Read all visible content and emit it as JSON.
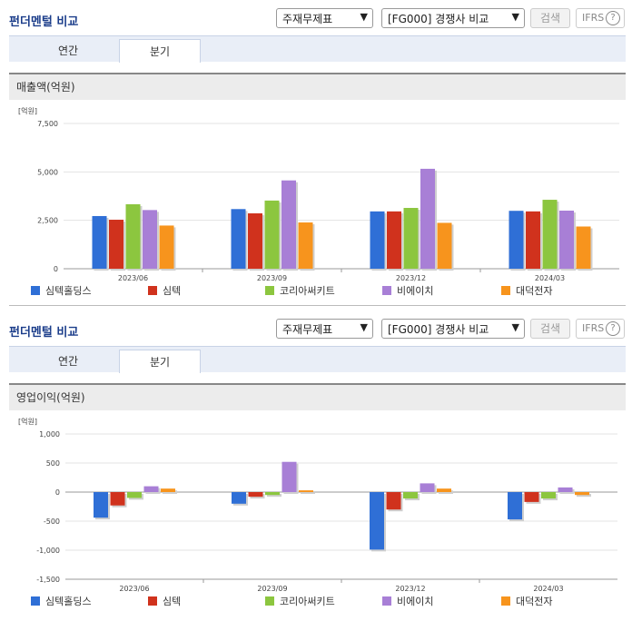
{
  "sections": [
    {
      "title": "펀더멘털 비교",
      "select_type": "주재무제표",
      "select_compare": "[FG000] 경쟁사 비교",
      "search_label": "검색",
      "ifrs_label": "IFRS",
      "help_glyph": "?",
      "tabs": [
        "연간",
        "분기"
      ],
      "active_tab": 1,
      "metric_label": "매출액(억원)"
    },
    {
      "title": "펀더멘털 비교",
      "select_type": "주재무제표",
      "select_compare": "[FG000] 경쟁사 비교",
      "search_label": "검색",
      "ifrs_label": "IFRS",
      "help_glyph": "?",
      "tabs": [
        "연간",
        "분기"
      ],
      "active_tab": 1,
      "metric_label": "영업이익(억원)"
    }
  ],
  "chart_data": [
    {
      "type": "bar",
      "unit_label": "[억원]",
      "categories": [
        "2023/06",
        "2023/09",
        "2023/12",
        "2024/03"
      ],
      "yticks": [
        "7,500",
        "5,000",
        "2,500",
        "0"
      ],
      "ylim": [
        0,
        7500
      ],
      "series": [
        {
          "name": "심텍홀딩스",
          "color": "#2f6fd6",
          "values": [
            2720,
            3080,
            2960,
            2990
          ]
        },
        {
          "name": "심텍",
          "color": "#d0321d",
          "values": [
            2530,
            2860,
            2960,
            2960
          ]
        },
        {
          "name": "코리아써키트",
          "color": "#8cc63f",
          "values": [
            3330,
            3520,
            3140,
            3560
          ]
        },
        {
          "name": "비에이치",
          "color": "#a87fd6",
          "values": [
            3030,
            4560,
            5160,
            3000
          ]
        },
        {
          "name": "대덕전자",
          "color": "#f7941d",
          "values": [
            2230,
            2390,
            2370,
            2180
          ]
        }
      ]
    },
    {
      "type": "bar",
      "unit_label": "[억원]",
      "categories": [
        "2023/06",
        "2023/09",
        "2023/12",
        "2024/03"
      ],
      "yticks": [
        "1,000",
        "500",
        "0",
        "-500",
        "-1,000",
        "-1,500"
      ],
      "ylim": [
        -1500,
        1000
      ],
      "series": [
        {
          "name": "심텍홀딩스",
          "color": "#2f6fd6",
          "values": [
            -440,
            -200,
            -990,
            -470
          ]
        },
        {
          "name": "심텍",
          "color": "#d0321d",
          "values": [
            -230,
            -80,
            -300,
            -170
          ]
        },
        {
          "name": "코리아써키트",
          "color": "#8cc63f",
          "values": [
            -100,
            -50,
            -110,
            -110
          ]
        },
        {
          "name": "비에이치",
          "color": "#a87fd6",
          "values": [
            100,
            520,
            150,
            80
          ]
        },
        {
          "name": "대덕전자",
          "color": "#f7941d",
          "values": [
            60,
            30,
            60,
            -50
          ]
        }
      ]
    }
  ]
}
